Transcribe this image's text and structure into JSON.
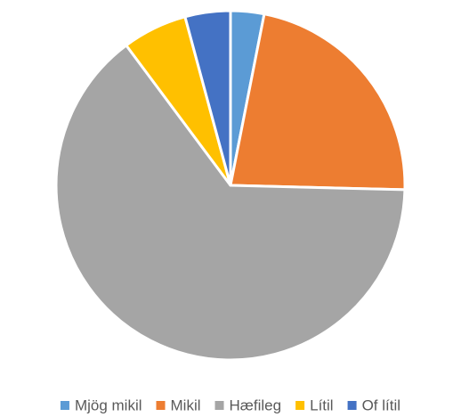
{
  "chart_data": {
    "type": "pie",
    "categories": [
      "Mjög mikil",
      "Mikil",
      "Hæfileg",
      "Lítil",
      "Of lítil"
    ],
    "values": [
      3.1,
      22.3,
      64.4,
      6.0,
      4.2
    ],
    "colors": [
      "#5b9bd5",
      "#ed7d31",
      "#a5a5a5",
      "#ffc000",
      "#4472c4"
    ],
    "legend": "bottom"
  }
}
